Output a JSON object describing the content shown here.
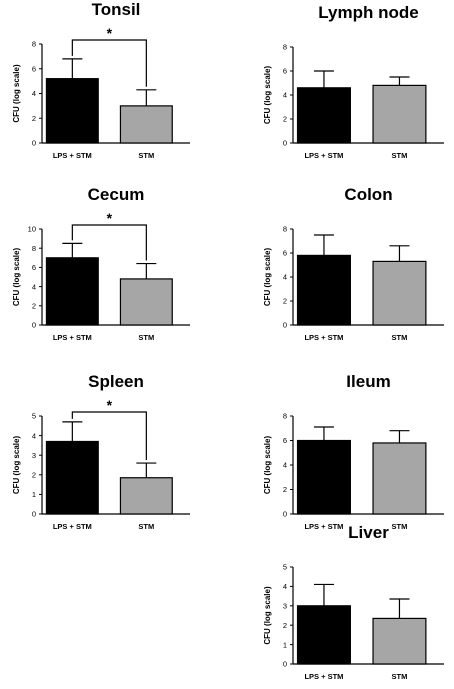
{
  "chart_data": [
    {
      "type": "bar",
      "title": "Tonsil",
      "ylabel": "CFU (log scale)",
      "ylim": [
        0,
        8
      ],
      "yticks": [
        0,
        2,
        4,
        6,
        8
      ],
      "categories": [
        "LPS + STM",
        "STM"
      ],
      "values": [
        5.2,
        3.0
      ],
      "errors": [
        1.6,
        1.3
      ],
      "colors": [
        "#000000",
        "#a6a6a6"
      ],
      "significance": "*"
    },
    {
      "type": "bar",
      "title": "Lymph node",
      "ylabel": "CFU (log scale)",
      "ylim": [
        0,
        8
      ],
      "yticks": [
        0,
        2,
        4,
        6,
        8
      ],
      "categories": [
        "LPS + STM",
        "STM"
      ],
      "values": [
        4.6,
        4.8
      ],
      "errors": [
        1.4,
        0.7
      ],
      "colors": [
        "#000000",
        "#a6a6a6"
      ],
      "significance": ""
    },
    {
      "type": "bar",
      "title": "Cecum",
      "ylabel": "CFU (log scale)",
      "ylim": [
        0,
        10
      ],
      "yticks": [
        0,
        2,
        4,
        6,
        8,
        10
      ],
      "categories": [
        "LPS + STM",
        "STM"
      ],
      "values": [
        7.0,
        4.8
      ],
      "errors": [
        1.5,
        1.6
      ],
      "colors": [
        "#000000",
        "#a6a6a6"
      ],
      "significance": "*"
    },
    {
      "type": "bar",
      "title": "Colon",
      "ylabel": "CFU (log scale)",
      "ylim": [
        0,
        8
      ],
      "yticks": [
        0,
        2,
        4,
        6,
        8
      ],
      "categories": [
        "LPS + STM",
        "STM"
      ],
      "values": [
        5.8,
        5.3
      ],
      "errors": [
        1.7,
        1.3
      ],
      "colors": [
        "#000000",
        "#a6a6a6"
      ],
      "significance": ""
    },
    {
      "type": "bar",
      "title": "Spleen",
      "ylabel": "CFU (log scale)",
      "ylim": [
        0,
        5
      ],
      "yticks": [
        0,
        1,
        2,
        3,
        4,
        5
      ],
      "categories": [
        "LPS + STM",
        "STM"
      ],
      "values": [
        3.7,
        1.85
      ],
      "errors": [
        1.0,
        0.75
      ],
      "colors": [
        "#000000",
        "#a6a6a6"
      ],
      "significance": "*"
    },
    {
      "type": "bar",
      "title": "Ileum",
      "ylabel": "CFU (log scale)",
      "ylim": [
        0,
        8
      ],
      "yticks": [
        0,
        2,
        4,
        6,
        8
      ],
      "categories": [
        "LPS + STM",
        "STM"
      ],
      "values": [
        6.0,
        5.8
      ],
      "errors": [
        1.1,
        1.0
      ],
      "colors": [
        "#000000",
        "#a6a6a6"
      ],
      "significance": ""
    },
    {
      "type": "bar",
      "title": "Liver",
      "ylabel": "CFU (log scale)",
      "ylim": [
        0,
        5
      ],
      "yticks": [
        0,
        1,
        2,
        3,
        4,
        5
      ],
      "categories": [
        "LPS + STM",
        "STM"
      ],
      "values": [
        3.0,
        2.35
      ],
      "errors": [
        1.1,
        1.0
      ],
      "colors": [
        "#000000",
        "#a6a6a6"
      ],
      "significance": ""
    }
  ]
}
